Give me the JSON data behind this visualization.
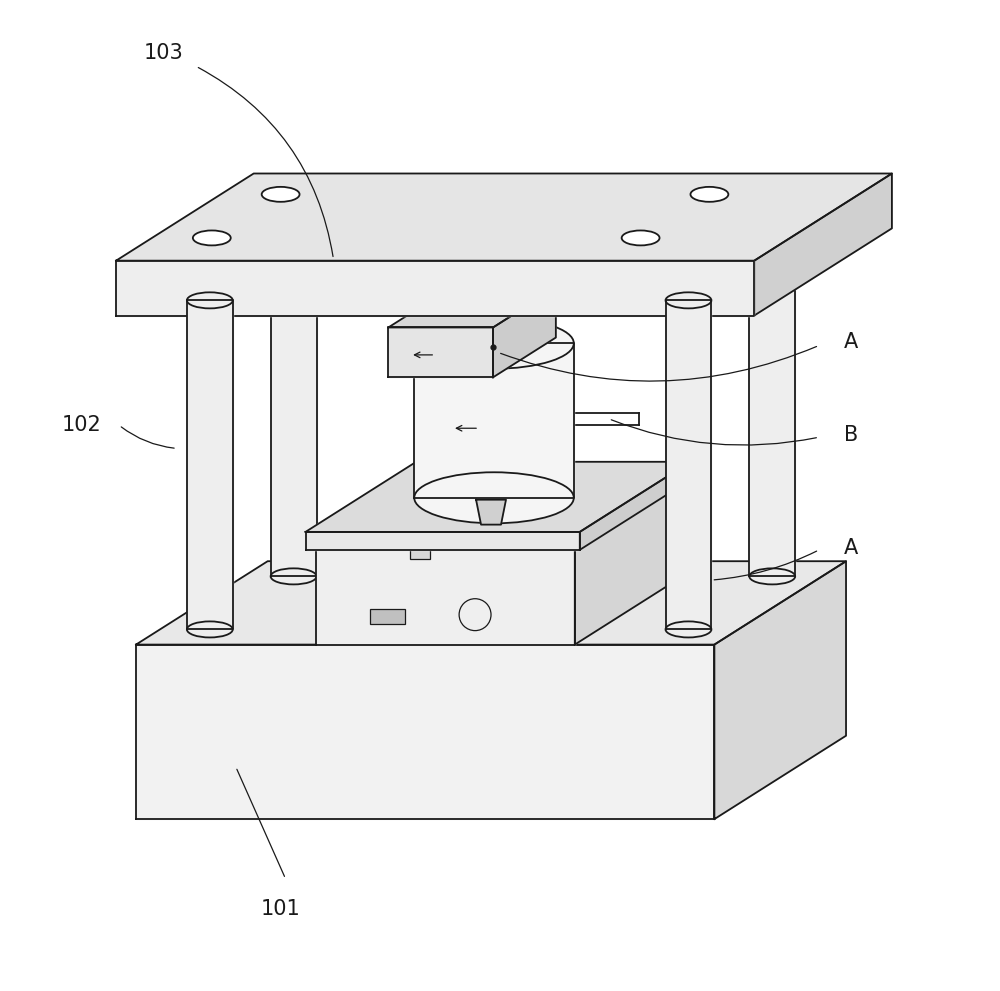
{
  "bg_color": "#ffffff",
  "line_color": "#1a1a1a",
  "label_103": "103",
  "label_102": "102",
  "label_101": "101",
  "label_A1": "A",
  "label_A2": "A",
  "label_B": "B",
  "figsize": [
    10.0,
    9.91
  ],
  "dpi": 100
}
